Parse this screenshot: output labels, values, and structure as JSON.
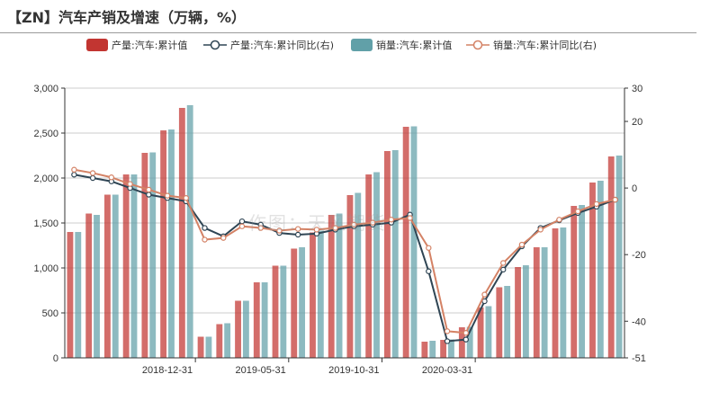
{
  "title": "【ZN】汽车产销及增速（万辆，%）",
  "watermark": "作图：天风期货",
  "legend": [
    {
      "label": "产量:汽车:累计值",
      "kind": "bar",
      "color": "#c23531"
    },
    {
      "label": "产量:汽车:累计同比(右)",
      "kind": "line",
      "color": "#2f4554"
    },
    {
      "label": "销量:汽车:累计值",
      "kind": "bar",
      "color": "#61a0a8"
    },
    {
      "label": "销量:汽车:累计同比(右)",
      "kind": "line",
      "color": "#d48265"
    }
  ],
  "chart_data": {
    "type": "bar",
    "x_tick_labels": [
      "2018-12-31",
      "2019-05-31",
      "2019-10-31",
      "2020-03-31"
    ],
    "x_tick_positions": [
      7,
      12,
      17,
      22
    ],
    "y_left": {
      "ticks": [
        "0",
        "500",
        "1,000",
        "1,500",
        "2,000",
        "2,500",
        "3,000"
      ],
      "min": 0,
      "max": 3000
    },
    "y_right": {
      "ticks": [
        "-51",
        "-40",
        "-20",
        "0",
        "20",
        "30"
      ],
      "min": -51,
      "max": 30
    },
    "grid": true,
    "series": [
      {
        "name": "产量:汽车:累计值",
        "type": "bar",
        "axis": "left",
        "color": "#c23531",
        "values": [
          1400,
          1605,
          1815,
          2040,
          2280,
          2530,
          2780,
          235,
          375,
          635,
          840,
          1025,
          1215,
          1395,
          1590,
          1810,
          2040,
          2300,
          2570,
          180,
          200,
          340,
          560,
          785,
          1010,
          1230,
          1440,
          1690,
          1950,
          2240
        ]
      },
      {
        "name": "产量:汽车:累计同比(右)",
        "type": "line",
        "axis": "right",
        "color": "#2f4554",
        "values": [
          4,
          3,
          2,
          0,
          -2,
          -3,
          -4,
          -12,
          -14.5,
          -10,
          -11,
          -13.5,
          -14,
          -13.7,
          -12.5,
          -11.5,
          -11,
          -10.4,
          -8,
          -25,
          -46,
          -45.5,
          -34,
          -24.5,
          -17.5,
          -12,
          -9.7,
          -7.5,
          -5.6,
          -3.5
        ]
      },
      {
        "name": "销量:汽车:累计值",
        "type": "bar",
        "axis": "left",
        "color": "#61a0a8",
        "values": [
          1400,
          1590,
          1815,
          2040,
          2285,
          2540,
          2810,
          235,
          385,
          635,
          840,
          1025,
          1230,
          1415,
          1605,
          1835,
          2065,
          2310,
          2575,
          190,
          205,
          345,
          575,
          800,
          1030,
          1230,
          1450,
          1700,
          1970,
          2250
        ]
      },
      {
        "name": "销量:汽车:累计同比(右)",
        "type": "line",
        "axis": "right",
        "color": "#d48265",
        "values": [
          5.5,
          4.5,
          3.2,
          1.2,
          -0.5,
          -2.3,
          -3,
          -15.5,
          -15,
          -11.5,
          -12,
          -12.8,
          -12.3,
          -12.5,
          -12,
          -11,
          -10.4,
          -9.5,
          -9,
          -18,
          -43,
          -43.5,
          -32,
          -22.5,
          -17,
          -12.5,
          -9.5,
          -7,
          -4.8,
          -3.5
        ]
      }
    ]
  }
}
